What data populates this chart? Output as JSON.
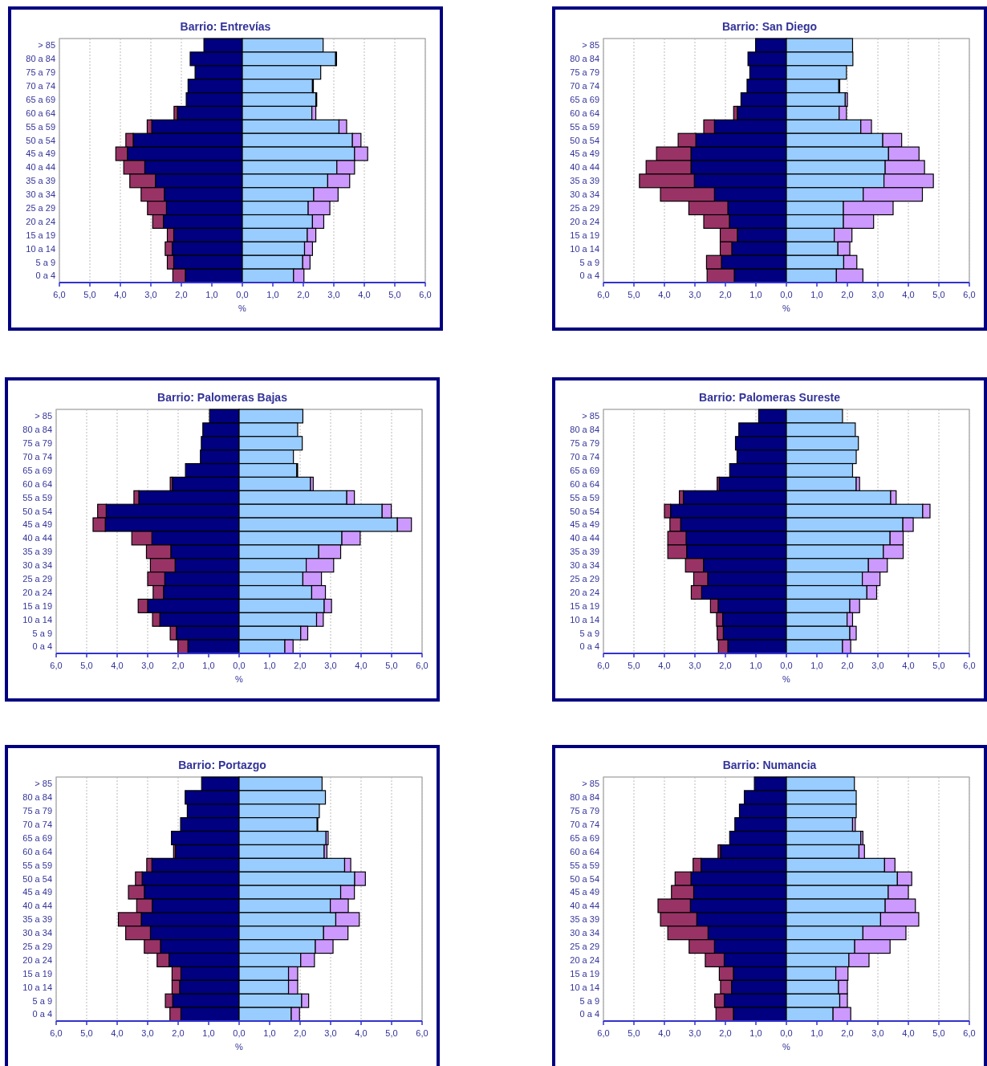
{
  "chart_data": [
    {
      "type": "bar",
      "orientation": "horizontal",
      "stacked": true,
      "grid": "x",
      "title": "Barrio: Entrevías",
      "xlabel": "%",
      "xlim": [
        -6,
        6
      ],
      "xticks": [
        {
          "value": -6,
          "label": "6,0"
        },
        {
          "value": -5,
          "label": "5,0"
        },
        {
          "value": -4,
          "label": "4,0"
        },
        {
          "value": -3,
          "label": "3,0"
        },
        {
          "value": -2,
          "label": "2,0"
        },
        {
          "value": -1,
          "label": "1,0"
        },
        {
          "value": 0,
          "label": "0,0"
        },
        {
          "value": 1,
          "label": "1,0"
        },
        {
          "value": 2,
          "label": "2,0"
        },
        {
          "value": 3,
          "label": "3,0"
        },
        {
          "value": 4,
          "label": "4,0"
        },
        {
          "value": 5,
          "label": "5,0"
        },
        {
          "value": 6,
          "label": "6,0"
        }
      ],
      "categories": [
        "> 85",
        "80 a 84",
        "75 a 79",
        "70 a 74",
        "65 a 69",
        "60 a 64",
        "55 a 59",
        "50 a 54",
        "45 a 49",
        "40 a 44",
        "35 a 39",
        "30 a 34",
        "25 a 29",
        "20 a 24",
        "15 a 19",
        "10 a 14",
        "5 a 9",
        "0 a 4"
      ],
      "series": [
        {
          "color": "#000080",
          "values": [
            -1.26,
            -1.71,
            -1.55,
            -1.78,
            -1.84,
            -2.13,
            -2.97,
            -3.58,
            -3.77,
            -3.2,
            -2.85,
            -2.56,
            -2.49,
            -2.59,
            -2.25,
            -2.3,
            -2.25,
            -1.87
          ]
        },
        {
          "color": "#993366",
          "values": [
            0,
            0,
            0,
            0,
            0,
            -0.11,
            -0.15,
            -0.24,
            -0.38,
            -0.69,
            -0.84,
            -0.76,
            -0.62,
            -0.35,
            -0.21,
            -0.23,
            -0.21,
            -0.41
          ]
        },
        {
          "color": "#99ccff",
          "values": [
            2.65,
            3.06,
            2.57,
            2.3,
            2.41,
            2.28,
            3.17,
            3.61,
            3.68,
            3.1,
            2.8,
            2.34,
            2.16,
            2.3,
            2.13,
            2.04,
            1.98,
            1.68
          ]
        },
        {
          "color": "#cc99ff",
          "values": [
            0,
            0.03,
            0,
            0.03,
            0.03,
            0.13,
            0.25,
            0.28,
            0.43,
            0.58,
            0.72,
            0.8,
            0.71,
            0.37,
            0.28,
            0.26,
            0.24,
            0.34
          ]
        }
      ]
    },
    {
      "type": "bar",
      "orientation": "horizontal",
      "stacked": true,
      "grid": "x",
      "title": "Barrio: San Diego",
      "xlabel": "%",
      "xlim": [
        -6,
        6
      ],
      "xticks": [
        {
          "value": -6,
          "label": "6,0"
        },
        {
          "value": -5,
          "label": "5,0"
        },
        {
          "value": -4,
          "label": "4,0"
        },
        {
          "value": -3,
          "label": "3,0"
        },
        {
          "value": -2,
          "label": "2,0"
        },
        {
          "value": -1,
          "label": "1,0"
        },
        {
          "value": 0,
          "label": "0,0"
        },
        {
          "value": 1,
          "label": "1,0"
        },
        {
          "value": 2,
          "label": "2,0"
        },
        {
          "value": 3,
          "label": "3,0"
        },
        {
          "value": 4,
          "label": "4,0"
        },
        {
          "value": 5,
          "label": "5,0"
        },
        {
          "value": 6,
          "label": "6,0"
        }
      ],
      "categories": [
        "> 85",
        "80 a 84",
        "75 a 79",
        "70 a 74",
        "65 a 69",
        "60 a 64",
        "55 a 59",
        "50 a 54",
        "45 a 49",
        "40 a 44",
        "35 a 39",
        "30 a 34",
        "25 a 29",
        "20 a 24",
        "15 a 19",
        "10 a 14",
        "5 a 9",
        "0 a 4"
      ],
      "series": [
        {
          "color": "#000080",
          "values": [
            -1.01,
            -1.26,
            -1.2,
            -1.29,
            -1.49,
            -1.61,
            -2.36,
            -2.97,
            -3.13,
            -3.13,
            -3.02,
            -2.36,
            -1.92,
            -1.87,
            -1.61,
            -1.79,
            -2.13,
            -1.71
          ]
        },
        {
          "color": "#993366",
          "values": [
            0,
            0,
            0,
            0,
            0,
            -0.12,
            -0.35,
            -0.58,
            -1.13,
            -1.47,
            -1.8,
            -1.77,
            -1.28,
            -0.84,
            -0.56,
            -0.38,
            -0.49,
            -0.89
          ]
        },
        {
          "color": "#99ccff",
          "values": [
            2.17,
            2.18,
            1.97,
            1.72,
            1.93,
            1.73,
            2.44,
            3.16,
            3.35,
            3.24,
            3.2,
            2.52,
            1.87,
            1.87,
            1.57,
            1.69,
            1.88,
            1.64
          ]
        },
        {
          "color": "#cc99ff",
          "values": [
            0,
            0,
            0,
            0.03,
            0.07,
            0.24,
            0.35,
            0.62,
            1.0,
            1.29,
            1.62,
            1.94,
            1.63,
            0.99,
            0.58,
            0.39,
            0.43,
            0.87
          ]
        }
      ]
    },
    {
      "type": "bar",
      "orientation": "horizontal",
      "stacked": true,
      "grid": "x",
      "title": "Barrio: Palomeras Bajas",
      "xlabel": "%",
      "xlim": [
        -6,
        6
      ],
      "xticks": [
        {
          "value": -6,
          "label": "6,0"
        },
        {
          "value": -5,
          "label": "5,0"
        },
        {
          "value": -4,
          "label": "4,0"
        },
        {
          "value": -3,
          "label": "3,0"
        },
        {
          "value": -2,
          "label": "2,0"
        },
        {
          "value": -1,
          "label": "1,0"
        },
        {
          "value": 0,
          "label": "0,0"
        },
        {
          "value": 1,
          "label": "1,0"
        },
        {
          "value": 2,
          "label": "2,0"
        },
        {
          "value": 3,
          "label": "3,0"
        },
        {
          "value": 4,
          "label": "4,0"
        },
        {
          "value": 5,
          "label": "5,0"
        },
        {
          "value": 6,
          "label": "6,0"
        }
      ],
      "categories": [
        "> 85",
        "80 a 84",
        "75 a 79",
        "70 a 74",
        "65 a 69",
        "60 a 64",
        "55 a 59",
        "50 a 54",
        "45 a 49",
        "40 a 44",
        "35 a 39",
        "30 a 34",
        "25 a 29",
        "20 a 24",
        "15 a 19",
        "10 a 14",
        "5 a 9",
        "0 a 4"
      ],
      "series": [
        {
          "color": "#000080",
          "values": [
            -0.97,
            -1.19,
            -1.24,
            -1.27,
            -1.76,
            -2.19,
            -3.29,
            -4.36,
            -4.39,
            -2.86,
            -2.24,
            -2.1,
            -2.44,
            -2.48,
            -3.0,
            -2.6,
            -2.06,
            -1.68
          ]
        },
        {
          "color": "#993366",
          "values": [
            0,
            0,
            0,
            0,
            0,
            -0.07,
            -0.16,
            -0.28,
            -0.4,
            -0.66,
            -0.8,
            -0.81,
            -0.56,
            -0.34,
            -0.31,
            -0.24,
            -0.2,
            -0.33
          ]
        },
        {
          "color": "#99ccff",
          "values": [
            2.09,
            1.92,
            2.07,
            1.78,
            1.89,
            2.34,
            3.53,
            4.69,
            5.19,
            3.37,
            2.61,
            2.2,
            2.09,
            2.38,
            2.79,
            2.54,
            2.02,
            1.5
          ]
        },
        {
          "color": "#cc99ff",
          "values": [
            0,
            0,
            0,
            0,
            0.03,
            0.09,
            0.25,
            0.3,
            0.46,
            0.6,
            0.72,
            0.9,
            0.61,
            0.45,
            0.24,
            0.22,
            0.23,
            0.27
          ]
        }
      ]
    },
    {
      "type": "bar",
      "orientation": "horizontal",
      "stacked": true,
      "grid": "x",
      "title": "Barrio: Palomeras Sureste",
      "xlabel": "%",
      "xlim": [
        -6,
        6
      ],
      "xticks": [
        {
          "value": -6,
          "label": "6,0"
        },
        {
          "value": -5,
          "label": "5,0"
        },
        {
          "value": -4,
          "label": "4,0"
        },
        {
          "value": -3,
          "label": "3,0"
        },
        {
          "value": -2,
          "label": "2,0"
        },
        {
          "value": -1,
          "label": "1,0"
        },
        {
          "value": 0,
          "label": "0,0"
        },
        {
          "value": 1,
          "label": "1,0"
        },
        {
          "value": 2,
          "label": "2,0"
        },
        {
          "value": 3,
          "label": "3,0"
        },
        {
          "value": 4,
          "label": "4,0"
        },
        {
          "value": 5,
          "label": "5,0"
        },
        {
          "value": 6,
          "label": "6,0"
        }
      ],
      "categories": [
        "> 85",
        "80 a 84",
        "75 a 79",
        "70 a 74",
        "65 a 69",
        "60 a 64",
        "55 a 59",
        "50 a 54",
        "45 a 49",
        "40 a 44",
        "35 a 39",
        "30 a 34",
        "25 a 29",
        "20 a 24",
        "15 a 19",
        "10 a 14",
        "5 a 9",
        "0 a 4"
      ],
      "series": [
        {
          "color": "#000080",
          "values": [
            -0.91,
            -1.56,
            -1.67,
            -1.62,
            -1.86,
            -2.2,
            -3.38,
            -3.8,
            -3.47,
            -3.29,
            -3.27,
            -2.72,
            -2.58,
            -2.78,
            -2.24,
            -2.09,
            -2.07,
            -1.92
          ]
        },
        {
          "color": "#993366",
          "values": [
            0,
            0,
            0,
            0,
            0,
            -0.07,
            -0.13,
            -0.2,
            -0.35,
            -0.6,
            -0.62,
            -0.59,
            -0.46,
            -0.34,
            -0.25,
            -0.2,
            -0.2,
            -0.31
          ]
        },
        {
          "color": "#99ccff",
          "values": [
            1.84,
            2.26,
            2.36,
            2.29,
            2.17,
            2.29,
            3.42,
            4.47,
            3.82,
            3.4,
            3.18,
            2.69,
            2.49,
            2.64,
            2.08,
            1.99,
            2.08,
            1.84
          ]
        },
        {
          "color": "#cc99ff",
          "values": [
            0,
            0,
            0,
            0,
            0,
            0.11,
            0.18,
            0.24,
            0.34,
            0.43,
            0.65,
            0.62,
            0.58,
            0.32,
            0.32,
            0.18,
            0.21,
            0.27
          ]
        }
      ]
    },
    {
      "type": "bar",
      "orientation": "horizontal",
      "stacked": true,
      "grid": "x",
      "title": "Barrio: Portazgo",
      "xlabel": "%",
      "xlim": [
        -6,
        6
      ],
      "xticks": [
        {
          "value": -6,
          "label": "6,0"
        },
        {
          "value": -5,
          "label": "5,0"
        },
        {
          "value": -4,
          "label": "4,0"
        },
        {
          "value": -3,
          "label": "3,0"
        },
        {
          "value": -2,
          "label": "2,0"
        },
        {
          "value": -1,
          "label": "1,0"
        },
        {
          "value": 0,
          "label": "0,0"
        },
        {
          "value": 1,
          "label": "1,0"
        },
        {
          "value": 2,
          "label": "2,0"
        },
        {
          "value": 3,
          "label": "3,0"
        },
        {
          "value": 4,
          "label": "4,0"
        },
        {
          "value": 5,
          "label": "5,0"
        },
        {
          "value": 6,
          "label": "6,0"
        }
      ],
      "categories": [
        "> 85",
        "80 a 84",
        "75 a 79",
        "70 a 74",
        "65 a 69",
        "60 a 64",
        "55 a 59",
        "50 a 54",
        "45 a 49",
        "40 a 44",
        "35 a 39",
        "30 a 34",
        "25 a 29",
        "20 a 24",
        "15 a 19",
        "10 a 14",
        "5 a 9",
        "0 a 4"
      ],
      "series": [
        {
          "color": "#000080",
          "values": [
            -1.23,
            -1.77,
            -1.7,
            -1.92,
            -2.22,
            -2.09,
            -2.86,
            -3.18,
            -3.11,
            -2.85,
            -3.21,
            -2.91,
            -2.58,
            -2.3,
            -1.91,
            -1.95,
            -2.18,
            -1.91
          ]
        },
        {
          "color": "#993366",
          "values": [
            0,
            0,
            0,
            0,
            0,
            -0.06,
            -0.17,
            -0.22,
            -0.52,
            -0.51,
            -0.75,
            -0.81,
            -0.53,
            -0.39,
            -0.29,
            -0.25,
            -0.24,
            -0.36
          ]
        },
        {
          "color": "#99ccff",
          "values": [
            2.72,
            2.83,
            2.63,
            2.56,
            2.85,
            2.79,
            3.46,
            3.79,
            3.33,
            2.99,
            3.17,
            2.77,
            2.5,
            2.02,
            1.62,
            1.62,
            2.05,
            1.71
          ]
        },
        {
          "color": "#cc99ff",
          "values": [
            0,
            0,
            0,
            0.02,
            0.07,
            0.09,
            0.2,
            0.35,
            0.45,
            0.59,
            0.77,
            0.8,
            0.58,
            0.45,
            0.3,
            0.3,
            0.23,
            0.27
          ]
        }
      ]
    },
    {
      "type": "bar",
      "orientation": "horizontal",
      "stacked": true,
      "grid": "x",
      "title": "Barrio: Numancia",
      "xlabel": "%",
      "xlim": [
        -6,
        6
      ],
      "xticks": [
        {
          "value": -6,
          "label": "6,0"
        },
        {
          "value": -5,
          "label": "5,0"
        },
        {
          "value": -4,
          "label": "4,0"
        },
        {
          "value": -3,
          "label": "3,0"
        },
        {
          "value": -2,
          "label": "2,0"
        },
        {
          "value": -1,
          "label": "1,0"
        },
        {
          "value": 0,
          "label": "0,0"
        },
        {
          "value": 1,
          "label": "1,0"
        },
        {
          "value": 2,
          "label": "2,0"
        },
        {
          "value": 3,
          "label": "3,0"
        },
        {
          "value": 4,
          "label": "4,0"
        },
        {
          "value": 5,
          "label": "5,0"
        },
        {
          "value": 6,
          "label": "6,0"
        }
      ],
      "categories": [
        "> 85",
        "80 a 84",
        "75 a 79",
        "70 a 74",
        "65 a 69",
        "60 a 64",
        "55 a 59",
        "50 a 54",
        "45 a 49",
        "40 a 44",
        "35 a 39",
        "30 a 34",
        "25 a 29",
        "20 a 24",
        "15 a 19",
        "10 a 14",
        "5 a 9",
        "0 a 4"
      ],
      "series": [
        {
          "color": "#000080",
          "values": [
            -1.05,
            -1.38,
            -1.54,
            -1.69,
            -1.86,
            -2.16,
            -2.8,
            -3.13,
            -3.04,
            -3.15,
            -2.94,
            -2.57,
            -2.36,
            -2.04,
            -1.74,
            -1.8,
            -2.04,
            -1.74
          ]
        },
        {
          "color": "#993366",
          "values": [
            0,
            0,
            0,
            0,
            0,
            -0.08,
            -0.26,
            -0.52,
            -0.73,
            -1.06,
            -1.19,
            -1.32,
            -0.83,
            -0.62,
            -0.46,
            -0.36,
            -0.31,
            -0.57
          ]
        },
        {
          "color": "#99ccff",
          "values": [
            2.23,
            2.29,
            2.29,
            2.17,
            2.44,
            2.38,
            3.22,
            3.64,
            3.34,
            3.24,
            3.09,
            2.51,
            2.24,
            2.05,
            1.62,
            1.71,
            1.75,
            1.53
          ]
        },
        {
          "color": "#cc99ff",
          "values": [
            0,
            0,
            0,
            0.09,
            0.07,
            0.18,
            0.34,
            0.47,
            0.66,
            0.99,
            1.25,
            1.41,
            1.16,
            0.66,
            0.4,
            0.29,
            0.25,
            0.58
          ]
        }
      ]
    }
  ]
}
